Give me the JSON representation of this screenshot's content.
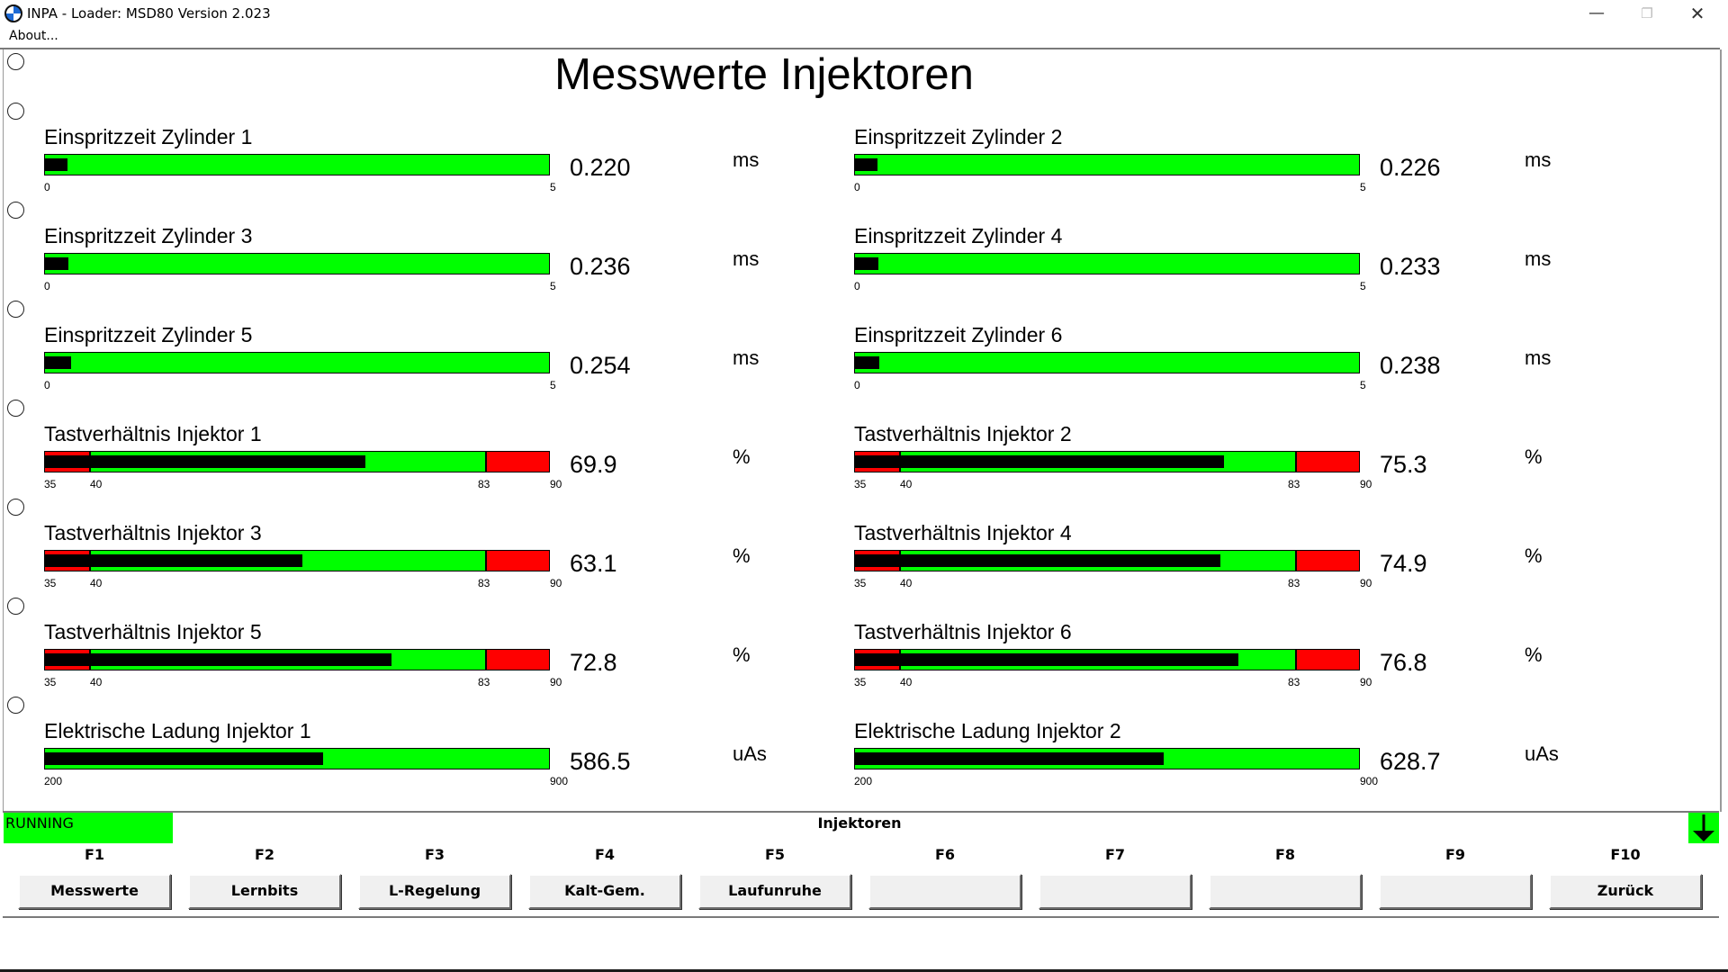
{
  "window": {
    "title": "INPA - Loader:  MSD80 Version 2.023",
    "minimize": "—",
    "maximize": "❐",
    "close": "✕"
  },
  "menu": {
    "about": "About..."
  },
  "page_title": "Messwerte Injektoren",
  "meters": [
    {
      "label": "Einspritzzeit Zylinder 1",
      "value": "0.220",
      "unit": "ms",
      "min": "0",
      "max": "5",
      "type": "time",
      "fill": 0.044
    },
    {
      "label": "Einspritzzeit Zylinder 2",
      "value": "0.226",
      "unit": "ms",
      "min": "0",
      "max": "5",
      "type": "time",
      "fill": 0.045
    },
    {
      "label": "Einspritzzeit Zylinder 3",
      "value": "0.236",
      "unit": "ms",
      "min": "0",
      "max": "5",
      "type": "time",
      "fill": 0.047
    },
    {
      "label": "Einspritzzeit Zylinder 4",
      "value": "0.233",
      "unit": "ms",
      "min": "0",
      "max": "5",
      "type": "time",
      "fill": 0.047
    },
    {
      "label": "Einspritzzeit Zylinder 5",
      "value": "0.254",
      "unit": "ms",
      "min": "0",
      "max": "5",
      "type": "time",
      "fill": 0.051
    },
    {
      "label": "Einspritzzeit Zylinder 6",
      "value": "0.238",
      "unit": "ms",
      "min": "0",
      "max": "5",
      "type": "time",
      "fill": 0.048
    },
    {
      "label": "Tastverhältnis Injektor 1",
      "value": "69.9",
      "unit": "%",
      "min": "35",
      "low": "40",
      "high": "83",
      "max": "90",
      "type": "duty",
      "fill": 0.635
    },
    {
      "label": "Tastverhältnis Injektor 2",
      "value": "75.3",
      "unit": "%",
      "min": "35",
      "low": "40",
      "high": "83",
      "max": "90",
      "type": "duty",
      "fill": 0.733
    },
    {
      "label": "Tastverhältnis Injektor 3",
      "value": "63.1",
      "unit": "%",
      "min": "35",
      "low": "40",
      "high": "83",
      "max": "90",
      "type": "duty",
      "fill": 0.511
    },
    {
      "label": "Tastverhältnis Injektor 4",
      "value": "74.9",
      "unit": "%",
      "min": "35",
      "low": "40",
      "high": "83",
      "max": "90",
      "type": "duty",
      "fill": 0.725
    },
    {
      "label": "Tastverhältnis Injektor 5",
      "value": "72.8",
      "unit": "%",
      "min": "35",
      "low": "40",
      "high": "83",
      "max": "90",
      "type": "duty",
      "fill": 0.687
    },
    {
      "label": "Tastverhältnis Injektor 6",
      "value": "76.8",
      "unit": "%",
      "min": "35",
      "low": "40",
      "high": "83",
      "max": "90",
      "type": "duty",
      "fill": 0.76
    },
    {
      "label": "Elektrische Ladung Injektor 1",
      "value": "586.5",
      "unit": "uAs",
      "min": "200",
      "max": "900",
      "type": "charge",
      "fill": 0.552
    },
    {
      "label": "Elektrische Ladung Injektor 2",
      "value": "628.7",
      "unit": "uAs",
      "min": "200",
      "max": "900",
      "type": "charge",
      "fill": 0.612
    }
  ],
  "status": {
    "text": "RUNNING",
    "color": "#00ff00"
  },
  "screen_name": "Injektoren",
  "fkeys": [
    {
      "key": "F1",
      "label": "Messwerte"
    },
    {
      "key": "F2",
      "label": "Lernbits"
    },
    {
      "key": "F3",
      "label": "L-Regelung"
    },
    {
      "key": "F4",
      "label": "Kalt-Gem."
    },
    {
      "key": "F5",
      "label": "Laufunruhe"
    },
    {
      "key": "F6",
      "label": ""
    },
    {
      "key": "F7",
      "label": ""
    },
    {
      "key": "F8",
      "label": ""
    },
    {
      "key": "F9",
      "label": ""
    },
    {
      "key": "F10",
      "label": "Zurück"
    }
  ],
  "colors": {
    "bar_ok": "#00ff00",
    "bar_warn": "#ff0000",
    "bar_fill": "#000000"
  }
}
